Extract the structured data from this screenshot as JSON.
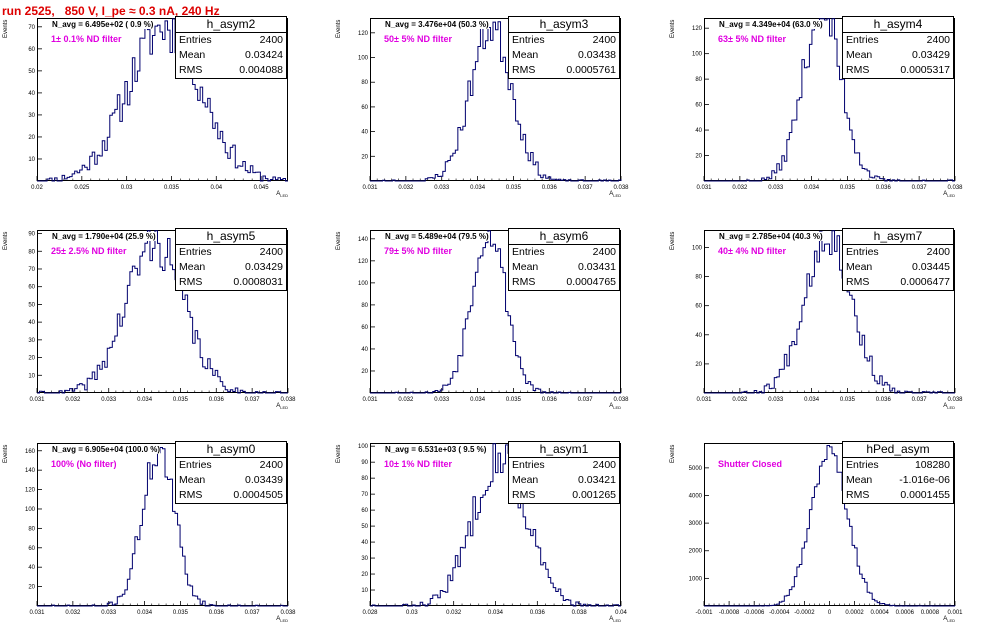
{
  "title": "run 2525,   850 V, I_pe ≈ 0.3 nA, 240 Hz",
  "colors": {
    "title": "#dd0000",
    "hist": "#00006e",
    "annotation": "#e000e0"
  },
  "axis_label_y": "Events",
  "axis_label_x": "A",
  "axis_label_x_sub": "LED",
  "stat_labels": {
    "entries": "Entries",
    "mean": "Mean",
    "rms": "RMS"
  },
  "chart_data": [
    {
      "type": "histogram",
      "name": "h_asym2",
      "navg": "N_avg = 6.495e+02 ( 0.9 %)",
      "filter": "1± 0.1% ND filter",
      "entries": "2400",
      "mean_str": "0.03424",
      "rms_str": "0.004088",
      "mean": 0.03424,
      "rms": 0.004088,
      "peak": 70,
      "xlim": [
        0.02,
        0.048
      ],
      "xticks": [
        0.02,
        0.025,
        0.03,
        0.035,
        0.04,
        0.045
      ],
      "xtick_labels": [
        "0.02",
        "0.025",
        "0.03",
        "0.035",
        "0.04",
        "0.045"
      ],
      "ylim": [
        0,
        74
      ],
      "yticks": [
        10,
        20,
        30,
        40,
        50,
        60,
        70
      ],
      "ytick_labels": [
        "10",
        "20",
        "30",
        "40",
        "50",
        "60",
        "70"
      ],
      "seed": 11
    },
    {
      "type": "histogram",
      "name": "h_asym3",
      "navg": "N_avg = 3.476e+04 (50.3 %)",
      "filter": "50± 5% ND filter",
      "entries": "2400",
      "mean_str": "0.03438",
      "rms_str": "0.0005761",
      "mean": 0.03438,
      "rms": 0.0005761,
      "peak": 125,
      "xlim": [
        0.031,
        0.038
      ],
      "xticks": [
        0.031,
        0.032,
        0.033,
        0.034,
        0.035,
        0.036,
        0.037,
        0.038
      ],
      "xtick_labels": [
        "0.031",
        "0.032",
        "0.033",
        "0.034",
        "0.035",
        "0.036",
        "0.037",
        "0.038"
      ],
      "ylim": [
        0,
        132
      ],
      "yticks": [
        20,
        40,
        60,
        80,
        100,
        120
      ],
      "ytick_labels": [
        "20",
        "40",
        "60",
        "80",
        "100",
        "120"
      ],
      "seed": 23
    },
    {
      "type": "histogram",
      "name": "h_asym4",
      "navg": "N_avg = 4.349e+04 (63.0 %)",
      "filter": "63± 5% ND filter",
      "entries": "2400",
      "mean_str": "0.03429",
      "rms_str": "0.0005317",
      "mean": 0.03429,
      "rms": 0.0005317,
      "peak": 135,
      "xlim": [
        0.031,
        0.038
      ],
      "xticks": [
        0.031,
        0.032,
        0.033,
        0.034,
        0.035,
        0.036,
        0.037,
        0.038
      ],
      "xtick_labels": [
        "0.031",
        "0.032",
        "0.033",
        "0.034",
        "0.035",
        "0.036",
        "0.037",
        "0.038"
      ],
      "ylim": [
        0,
        128
      ],
      "yticks": [
        20,
        40,
        60,
        80,
        100,
        120
      ],
      "ytick_labels": [
        "20",
        "40",
        "60",
        "80",
        "100",
        "120"
      ],
      "seed": 37
    },
    {
      "type": "histogram",
      "name": "h_asym5",
      "navg": "N_avg = 1.790e+04 (25.9 %)",
      "filter": "25± 2.5% ND filter",
      "entries": "2400",
      "mean_str": "0.03429",
      "rms_str": "0.0008031",
      "mean": 0.03429,
      "rms": 0.0008031,
      "peak": 85,
      "xlim": [
        0.031,
        0.038
      ],
      "xticks": [
        0.031,
        0.032,
        0.033,
        0.034,
        0.035,
        0.036,
        0.037,
        0.038
      ],
      "xtick_labels": [
        "0.031",
        "0.032",
        "0.033",
        "0.034",
        "0.035",
        "0.036",
        "0.037",
        "0.038"
      ],
      "ylim": [
        0,
        92
      ],
      "yticks": [
        10,
        20,
        30,
        40,
        50,
        60,
        70,
        80,
        90
      ],
      "ytick_labels": [
        "10",
        "20",
        "30",
        "40",
        "50",
        "60",
        "70",
        "80",
        "90"
      ],
      "seed": 41
    },
    {
      "type": "histogram",
      "name": "h_asym6",
      "navg": "N_avg = 5.489e+04 (79.5 %)",
      "filter": "79± 5% ND filter",
      "entries": "2400",
      "mean_str": "0.03431",
      "rms_str": "0.0004765",
      "mean": 0.03431,
      "rms": 0.0004765,
      "peak": 150,
      "xlim": [
        0.031,
        0.038
      ],
      "xticks": [
        0.031,
        0.032,
        0.033,
        0.034,
        0.035,
        0.036,
        0.037,
        0.038
      ],
      "xtick_labels": [
        "0.031",
        "0.032",
        "0.033",
        "0.034",
        "0.035",
        "0.036",
        "0.037",
        "0.038"
      ],
      "ylim": [
        0,
        148
      ],
      "yticks": [
        20,
        40,
        60,
        80,
        100,
        120,
        140
      ],
      "ytick_labels": [
        "20",
        "40",
        "60",
        "80",
        "100",
        "120",
        "140"
      ],
      "seed": 53
    },
    {
      "type": "histogram",
      "name": "h_asym7",
      "navg": "N_avg = 2.785e+04 (40.3 %)",
      "filter": "40± 4% ND filter",
      "entries": "2400",
      "mean_str": "0.03445",
      "rms_str": "0.0006477",
      "mean": 0.03445,
      "rms": 0.0006477,
      "peak": 110,
      "xlim": [
        0.031,
        0.038
      ],
      "xticks": [
        0.031,
        0.032,
        0.033,
        0.034,
        0.035,
        0.036,
        0.037,
        0.038
      ],
      "xtick_labels": [
        "0.031",
        "0.032",
        "0.033",
        "0.034",
        "0.035",
        "0.036",
        "0.037",
        "0.038"
      ],
      "ylim": [
        0,
        112
      ],
      "yticks": [
        20,
        40,
        60,
        80,
        100
      ],
      "ytick_labels": [
        "20",
        "40",
        "60",
        "80",
        "100"
      ],
      "seed": 67
    },
    {
      "type": "histogram",
      "name": "h_asym0",
      "navg": "N_avg = 6.905e+04 (100.0 %)",
      "filter": "100% (No filter)",
      "entries": "2400",
      "mean_str": "0.03439",
      "rms_str": "0.0004505",
      "mean": 0.03439,
      "rms": 0.0004505,
      "peak": 160,
      "xlim": [
        0.031,
        0.038
      ],
      "xticks": [
        0.031,
        0.032,
        0.033,
        0.034,
        0.035,
        0.036,
        0.037,
        0.038
      ],
      "xtick_labels": [
        "0.031",
        "0.032",
        "0.033",
        "0.034",
        "0.035",
        "0.036",
        "0.037",
        "0.038"
      ],
      "ylim": [
        0,
        168
      ],
      "yticks": [
        20,
        40,
        60,
        80,
        100,
        120,
        140,
        160
      ],
      "ytick_labels": [
        "20",
        "40",
        "60",
        "80",
        "100",
        "120",
        "140",
        "160"
      ],
      "seed": 71
    },
    {
      "type": "histogram",
      "name": "h_asym1",
      "navg": "N_avg = 6.531e+03 ( 9.5 %)",
      "filter": "10± 1% ND filter",
      "entries": "2400",
      "mean_str": "0.03421",
      "rms_str": "0.001265",
      "mean": 0.03421,
      "rms": 0.001265,
      "peak": 95,
      "xlim": [
        0.028,
        0.04
      ],
      "xticks": [
        0.028,
        0.03,
        0.032,
        0.034,
        0.036,
        0.038,
        0.04
      ],
      "xtick_labels": [
        "0.028",
        "0.03",
        "0.032",
        "0.034",
        "0.036",
        "0.038",
        "0.04"
      ],
      "ylim": [
        0,
        102
      ],
      "yticks": [
        10,
        20,
        30,
        40,
        50,
        60,
        70,
        80,
        90,
        100
      ],
      "ytick_labels": [
        "10",
        "20",
        "30",
        "40",
        "50",
        "60",
        "70",
        "80",
        "90",
        "100"
      ],
      "seed": 83
    },
    {
      "type": "histogram",
      "name": "hPed_asym",
      "navg": "",
      "filter": "Shutter Closed",
      "entries": "108280",
      "mean_str": "-1.016e-06",
      "rms_str": "0.0001455",
      "mean": -1.016e-06,
      "rms": 0.0001455,
      "peak": 5600,
      "xlim": [
        -0.001,
        0.001
      ],
      "xticks": [
        -0.001,
        -0.0008,
        -0.0006,
        -0.0004,
        -0.0002,
        0,
        0.0002,
        0.0004,
        0.0006,
        0.0008,
        0.001
      ],
      "xtick_labels": [
        "-0.001",
        "-0.0008",
        "-0.0006",
        "-0.0004",
        "-0.0002",
        "0",
        "0.0002",
        "0.0004",
        "0.0006",
        "0.0008",
        "0.001"
      ],
      "ylim": [
        0,
        5900
      ],
      "yticks": [
        1000,
        2000,
        3000,
        4000,
        5000
      ],
      "ytick_labels": [
        "1000",
        "2000",
        "3000",
        "4000",
        "5000"
      ],
      "seed": 97
    }
  ]
}
